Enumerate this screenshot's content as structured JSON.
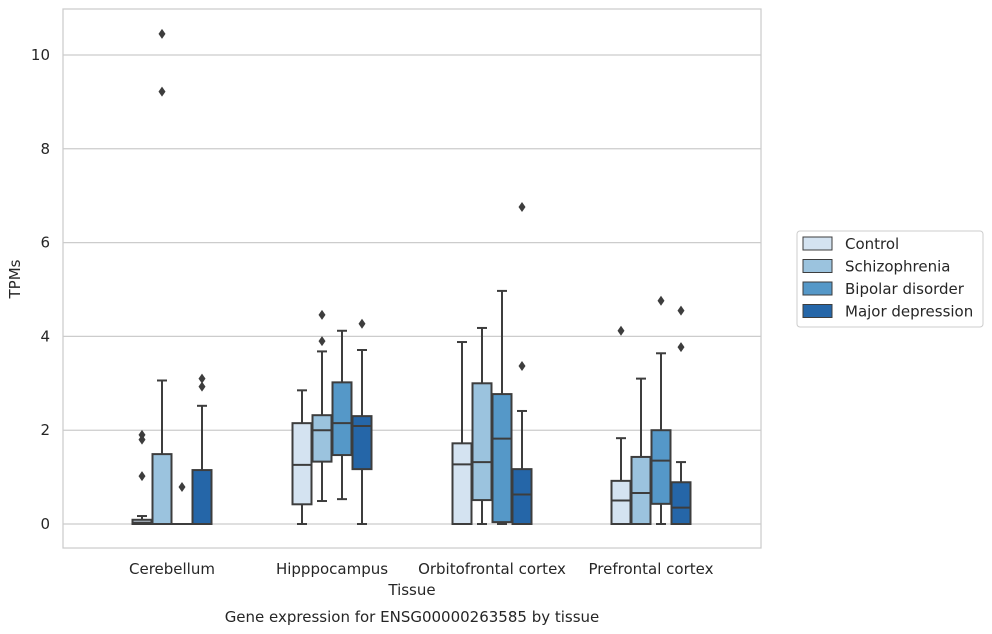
{
  "chart_data": {
    "type": "boxplot",
    "title": "Gene expression for ENSG00000263585 by tissue",
    "xlabel": "Tissue",
    "ylabel": "TPMs",
    "ylim": [
      -0.5,
      11
    ],
    "yticks": [
      0,
      2,
      4,
      6,
      8,
      10
    ],
    "grid": "horizontal",
    "legend_position": "right",
    "categories": [
      "Cerebellum",
      "Hipppocampus",
      "Orbitofrontal cortex",
      "Prefrontal cortex"
    ],
    "series": [
      {
        "name": "Control",
        "color": "#d4e3f1",
        "boxes": [
          {
            "whislo": 0,
            "q1": 0,
            "med": 0.03,
            "q3": 0.09,
            "whishi": 0.17,
            "fliers": [
              1.02,
              1.8,
              1.9
            ]
          },
          {
            "whislo": 0,
            "q1": 0.42,
            "med": 1.26,
            "q3": 2.15,
            "whishi": 2.85,
            "fliers": []
          },
          {
            "whislo": 0,
            "q1": 0,
            "med": 1.27,
            "q3": 1.72,
            "whishi": 3.88,
            "fliers": []
          },
          {
            "whislo": 0,
            "q1": 0,
            "med": 0.5,
            "q3": 0.92,
            "whishi": 1.83,
            "fliers": [
              4.12
            ]
          }
        ]
      },
      {
        "name": "Schizophrenia",
        "color": "#9bc3de",
        "boxes": [
          {
            "whislo": 0,
            "q1": 0,
            "med": 0,
            "q3": 1.49,
            "whishi": 3.06,
            "fliers": [
              9.22,
              10.45
            ]
          },
          {
            "whislo": 0.49,
            "q1": 1.33,
            "med": 2.0,
            "q3": 2.32,
            "whishi": 3.68,
            "fliers": [
              3.9,
              4.46
            ]
          },
          {
            "whislo": 0,
            "q1": 0.51,
            "med": 1.32,
            "q3": 3.0,
            "whishi": 4.18,
            "fliers": []
          },
          {
            "whislo": 0,
            "q1": 0,
            "med": 0.66,
            "q3": 1.43,
            "whishi": 3.1,
            "fliers": []
          }
        ]
      },
      {
        "name": "Bipolar disorder",
        "color": "#5598c8",
        "boxes": [
          {
            "whislo": 0,
            "q1": 0,
            "med": 0,
            "q3": 0,
            "whishi": 0,
            "fliers": [
              0.79
            ]
          },
          {
            "whislo": 0.53,
            "q1": 1.47,
            "med": 2.15,
            "q3": 3.02,
            "whishi": 4.12,
            "fliers": []
          },
          {
            "whislo": 0,
            "q1": 0.04,
            "med": 1.82,
            "q3": 2.77,
            "whishi": 4.97,
            "fliers": []
          },
          {
            "whislo": 0,
            "q1": 0.43,
            "med": 1.35,
            "q3": 2.0,
            "whishi": 3.64,
            "fliers": [
              4.76
            ]
          }
        ]
      },
      {
        "name": "Major depression",
        "color": "#2566a8",
        "boxes": [
          {
            "whislo": 0,
            "q1": 0,
            "med": 0,
            "q3": 1.15,
            "whishi": 2.52,
            "fliers": [
              2.93,
              3.1
            ]
          },
          {
            "whislo": 0,
            "q1": 1.17,
            "med": 2.09,
            "q3": 2.3,
            "whishi": 3.71,
            "fliers": [
              4.27
            ]
          },
          {
            "whislo": 0,
            "q1": 0,
            "med": 0.63,
            "q3": 1.17,
            "whishi": 2.41,
            "fliers": [
              3.37,
              6.76
            ]
          },
          {
            "whislo": 0,
            "q1": 0,
            "med": 0.35,
            "q3": 0.89,
            "whishi": 1.32,
            "fliers": [
              3.77,
              4.55
            ]
          }
        ]
      }
    ]
  }
}
